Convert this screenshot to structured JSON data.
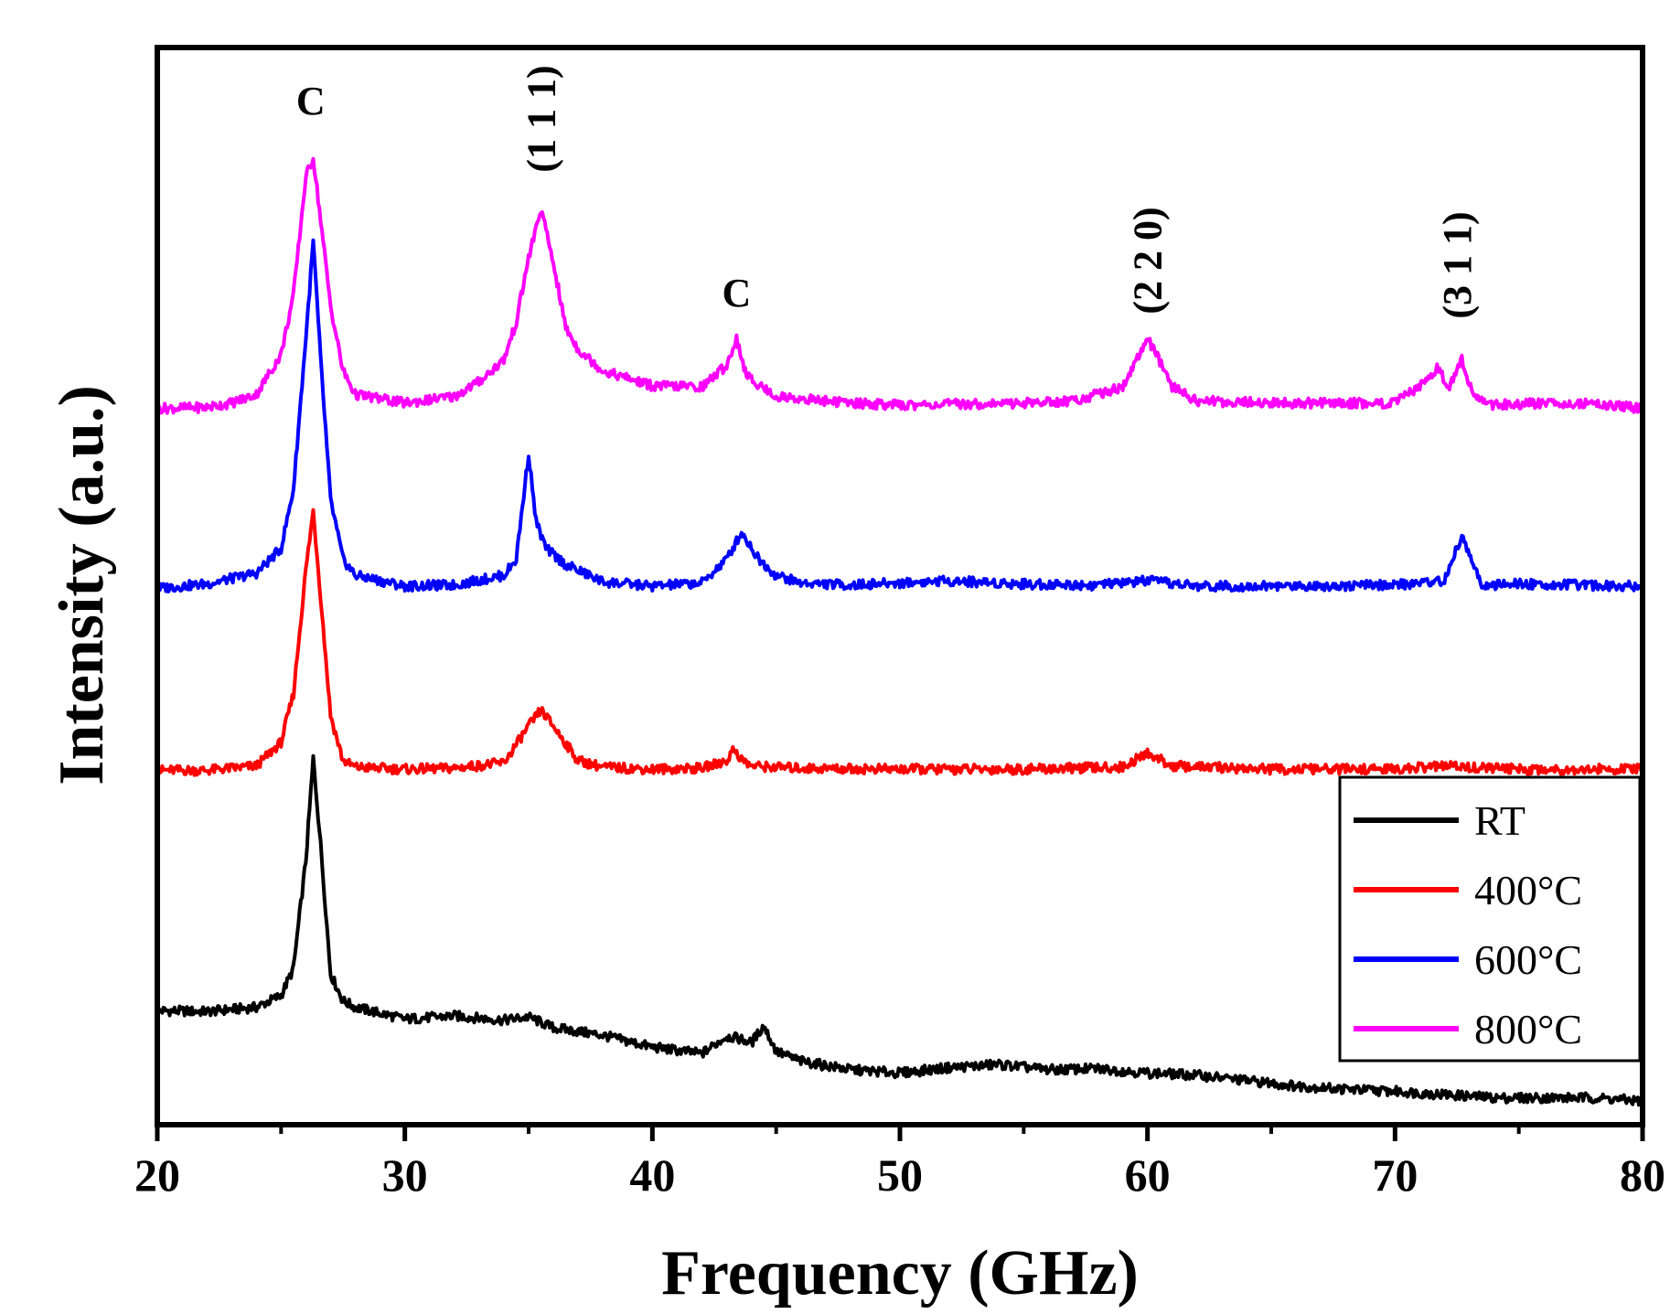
{
  "chart_data": {
    "type": "line",
    "title": "",
    "xlabel": "Frequency (GHz)",
    "ylabel": "Intensity (a.u.)",
    "xlim": [
      20,
      80
    ],
    "ylim": [
      0,
      100
    ],
    "xticks": [
      20,
      30,
      40,
      50,
      60,
      70,
      80
    ],
    "xtick_labels": [
      "20",
      "30",
      "40",
      "50",
      "60",
      "70",
      "80"
    ],
    "y_tick_labels_shown": false,
    "grid": false,
    "legend_position": "bottom-right",
    "series": [
      {
        "name": "RT",
        "color": "#000000",
        "x": [
          20,
          22,
          24,
          25,
          25.5,
          26,
          26.3,
          26.6,
          27,
          27.5,
          28,
          30,
          32,
          34,
          35,
          36,
          38,
          40,
          42,
          43,
          43.5,
          44,
          44.5,
          45,
          46,
          48,
          50,
          52,
          54,
          56,
          58,
          60,
          62,
          64,
          66,
          68,
          70,
          72,
          74,
          76,
          78,
          80
        ],
        "values": [
          10.6,
          10.5,
          10.9,
          12.0,
          14.5,
          24.5,
          34.0,
          26.0,
          14.0,
          11.5,
          10.9,
          9.8,
          10.1,
          9.7,
          10.0,
          9.0,
          8.3,
          7.2,
          6.6,
          8.2,
          8.0,
          7.6,
          9.2,
          6.8,
          5.9,
          5.1,
          4.8,
          5.3,
          5.6,
          5.1,
          5.2,
          4.8,
          4.6,
          4.1,
          3.6,
          3.3,
          3.1,
          2.8,
          2.5,
          2.5,
          2.5,
          2.2
        ]
      },
      {
        "name": "400°C",
        "color": "#ff0000",
        "x": [
          20,
          22,
          24,
          25,
          25.5,
          26,
          26.3,
          26.6,
          27,
          27.5,
          28,
          30,
          32,
          34,
          35,
          35.5,
          36,
          37,
          38,
          40,
          42,
          43,
          43.3,
          43.6,
          44,
          46,
          50,
          55,
          59,
          60,
          61,
          65,
          70,
          72,
          75,
          80
        ],
        "values": [
          32.9,
          32.9,
          33.3,
          35.5,
          40.0,
          51.5,
          57.0,
          49.0,
          38.0,
          33.8,
          33.2,
          33.0,
          33.1,
          33.6,
          37.0,
          38.5,
          37.0,
          33.8,
          33.2,
          33.0,
          33.1,
          33.8,
          34.9,
          33.9,
          33.3,
          33.1,
          33.0,
          33.0,
          33.2,
          34.5,
          33.3,
          33.0,
          33.0,
          33.3,
          33.0,
          33.0
        ]
      },
      {
        "name": "600°C",
        "color": "#0000ff",
        "x": [
          20,
          22,
          24,
          25,
          25.5,
          26,
          26.3,
          26.6,
          27,
          27.5,
          28,
          30,
          32,
          34,
          34.5,
          35,
          35.3,
          35.7,
          36.5,
          38,
          40,
          42,
          43,
          43.6,
          44.3,
          45,
          46,
          48,
          50,
          52,
          55,
          58,
          60,
          62,
          65,
          70,
          72,
          72.7,
          73,
          73.5,
          75,
          80
        ],
        "values": [
          49.8,
          50.2,
          51.2,
          53.5,
          59.0,
          73.0,
          82.0,
          71.0,
          58.0,
          52.5,
          51.0,
          50.0,
          50.1,
          51.0,
          52.5,
          62.3,
          56.0,
          53.5,
          52.0,
          50.4,
          50.0,
          50.3,
          52.5,
          55.0,
          52.5,
          51.0,
          50.3,
          50.1,
          50.3,
          50.5,
          50.2,
          50.1,
          50.5,
          50.0,
          50.0,
          50.1,
          50.5,
          54.7,
          53.0,
          50.0,
          50.2,
          50.0
        ]
      },
      {
        "name": "800°C",
        "color": "#ff00ff",
        "x": [
          20,
          22,
          23,
          24,
          25,
          25.5,
          26,
          26.3,
          26.6,
          27,
          27.5,
          28,
          30,
          32,
          33,
          34,
          34.5,
          35,
          35.5,
          36,
          36.5,
          37,
          38,
          40,
          42,
          43,
          43.4,
          43.8,
          45,
          48,
          50,
          55,
          57,
          59,
          60,
          60.5,
          61,
          62,
          65,
          68,
          70,
          71,
          71.7,
          72.2,
          72.7,
          73.2,
          74,
          76,
          78,
          80
        ],
        "values": [
          66.5,
          66.6,
          67.0,
          67.8,
          71.5,
          77.0,
          88.0,
          89.8,
          84.0,
          76.0,
          70.0,
          67.8,
          67.0,
          67.6,
          69.0,
          71.0,
          74.5,
          80.5,
          85.0,
          80.0,
          74.0,
          72.0,
          70.0,
          68.6,
          68.5,
          70.5,
          73.0,
          69.5,
          67.6,
          67.0,
          66.8,
          67.0,
          67.2,
          68.5,
          73.0,
          70.8,
          68.5,
          67.2,
          67.0,
          67.0,
          67.0,
          68.5,
          70.2,
          68.6,
          71.0,
          67.5,
          66.8,
          67.0,
          67.0,
          66.5
        ]
      }
    ],
    "annotations": [
      {
        "text": "C",
        "x": 26.2,
        "vertical": false
      },
      {
        "text": "(1 1 1)",
        "x": 35.5,
        "vertical": true
      },
      {
        "text": "C",
        "x": 43.4,
        "vertical": false
      },
      {
        "text": "(2 2 0)",
        "x": 60.0,
        "vertical": true
      },
      {
        "text": "(3 1 1)",
        "x": 72.5,
        "vertical": true
      }
    ]
  }
}
